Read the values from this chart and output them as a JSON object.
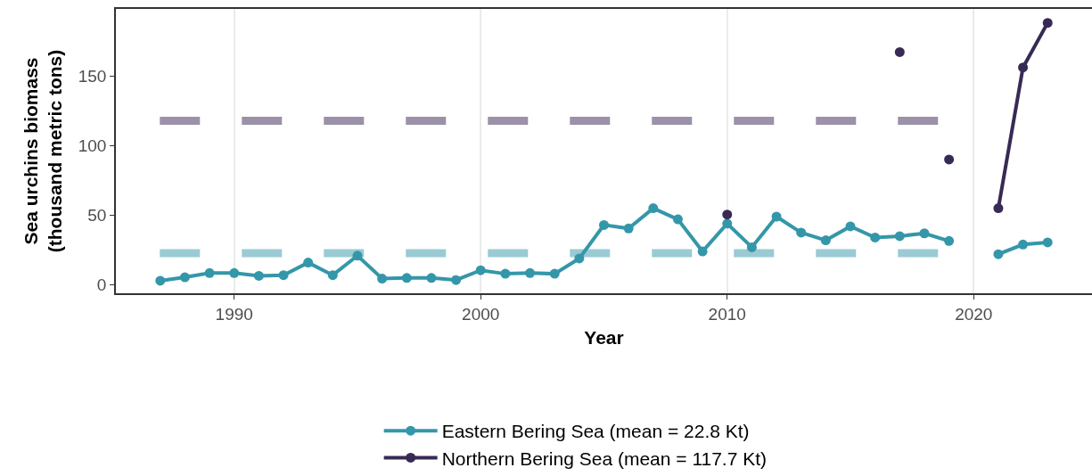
{
  "chart_data": {
    "type": "line",
    "xlabel": "Year",
    "ylabel": "Sea urchins biomass\n(thousand metric tons)",
    "x": [
      1987,
      1988,
      1989,
      1990,
      1991,
      1992,
      1993,
      1994,
      1995,
      1996,
      1997,
      1998,
      1999,
      2000,
      2001,
      2002,
      2003,
      2004,
      2005,
      2006,
      2007,
      2008,
      2009,
      2010,
      2011,
      2012,
      2013,
      2014,
      2015,
      2016,
      2017,
      2018,
      2019,
      2020,
      2021,
      2022,
      2023
    ],
    "series": [
      {
        "name": "Eastern Bering Sea (mean = 22.8 Kt)",
        "color": "#3497a9",
        "values": [
          3,
          5.5,
          8.5,
          8.5,
          6.5,
          7,
          16,
          7,
          21,
          4.5,
          5,
          5,
          3.5,
          10.5,
          8,
          8.5,
          8,
          19,
          43,
          40.5,
          55,
          47,
          24,
          44,
          27,
          49,
          37.5,
          32,
          42,
          34,
          35,
          37,
          31.5,
          null,
          22,
          29,
          30.5
        ]
      },
      {
        "name": "Northern Bering Sea (mean = 117.7 Kt)",
        "color": "#372a54",
        "values": [
          null,
          null,
          null,
          null,
          null,
          null,
          null,
          null,
          null,
          null,
          null,
          null,
          null,
          null,
          null,
          null,
          null,
          null,
          null,
          null,
          null,
          null,
          null,
          50.5,
          null,
          null,
          null,
          null,
          null,
          null,
          167,
          null,
          90,
          null,
          55,
          156,
          188
        ]
      }
    ],
    "ref_lines": [
      {
        "axis": "y",
        "value": 22.8,
        "color": "#9acbd4",
        "line_style": "dashed"
      },
      {
        "axis": "y",
        "value": 117.7,
        "color": "#9b91a8",
        "line_style": "dashed"
      }
    ],
    "xlim": [
      1985.2,
      2024.8
    ],
    "xticks": [
      1990,
      2000,
      2010,
      2020
    ],
    "ylim": [
      -6,
      198
    ],
    "yticks": [
      0,
      50,
      100,
      150
    ],
    "grid": "x",
    "legend": "bottom",
    "marker": "circle",
    "line_style": "solid"
  }
}
